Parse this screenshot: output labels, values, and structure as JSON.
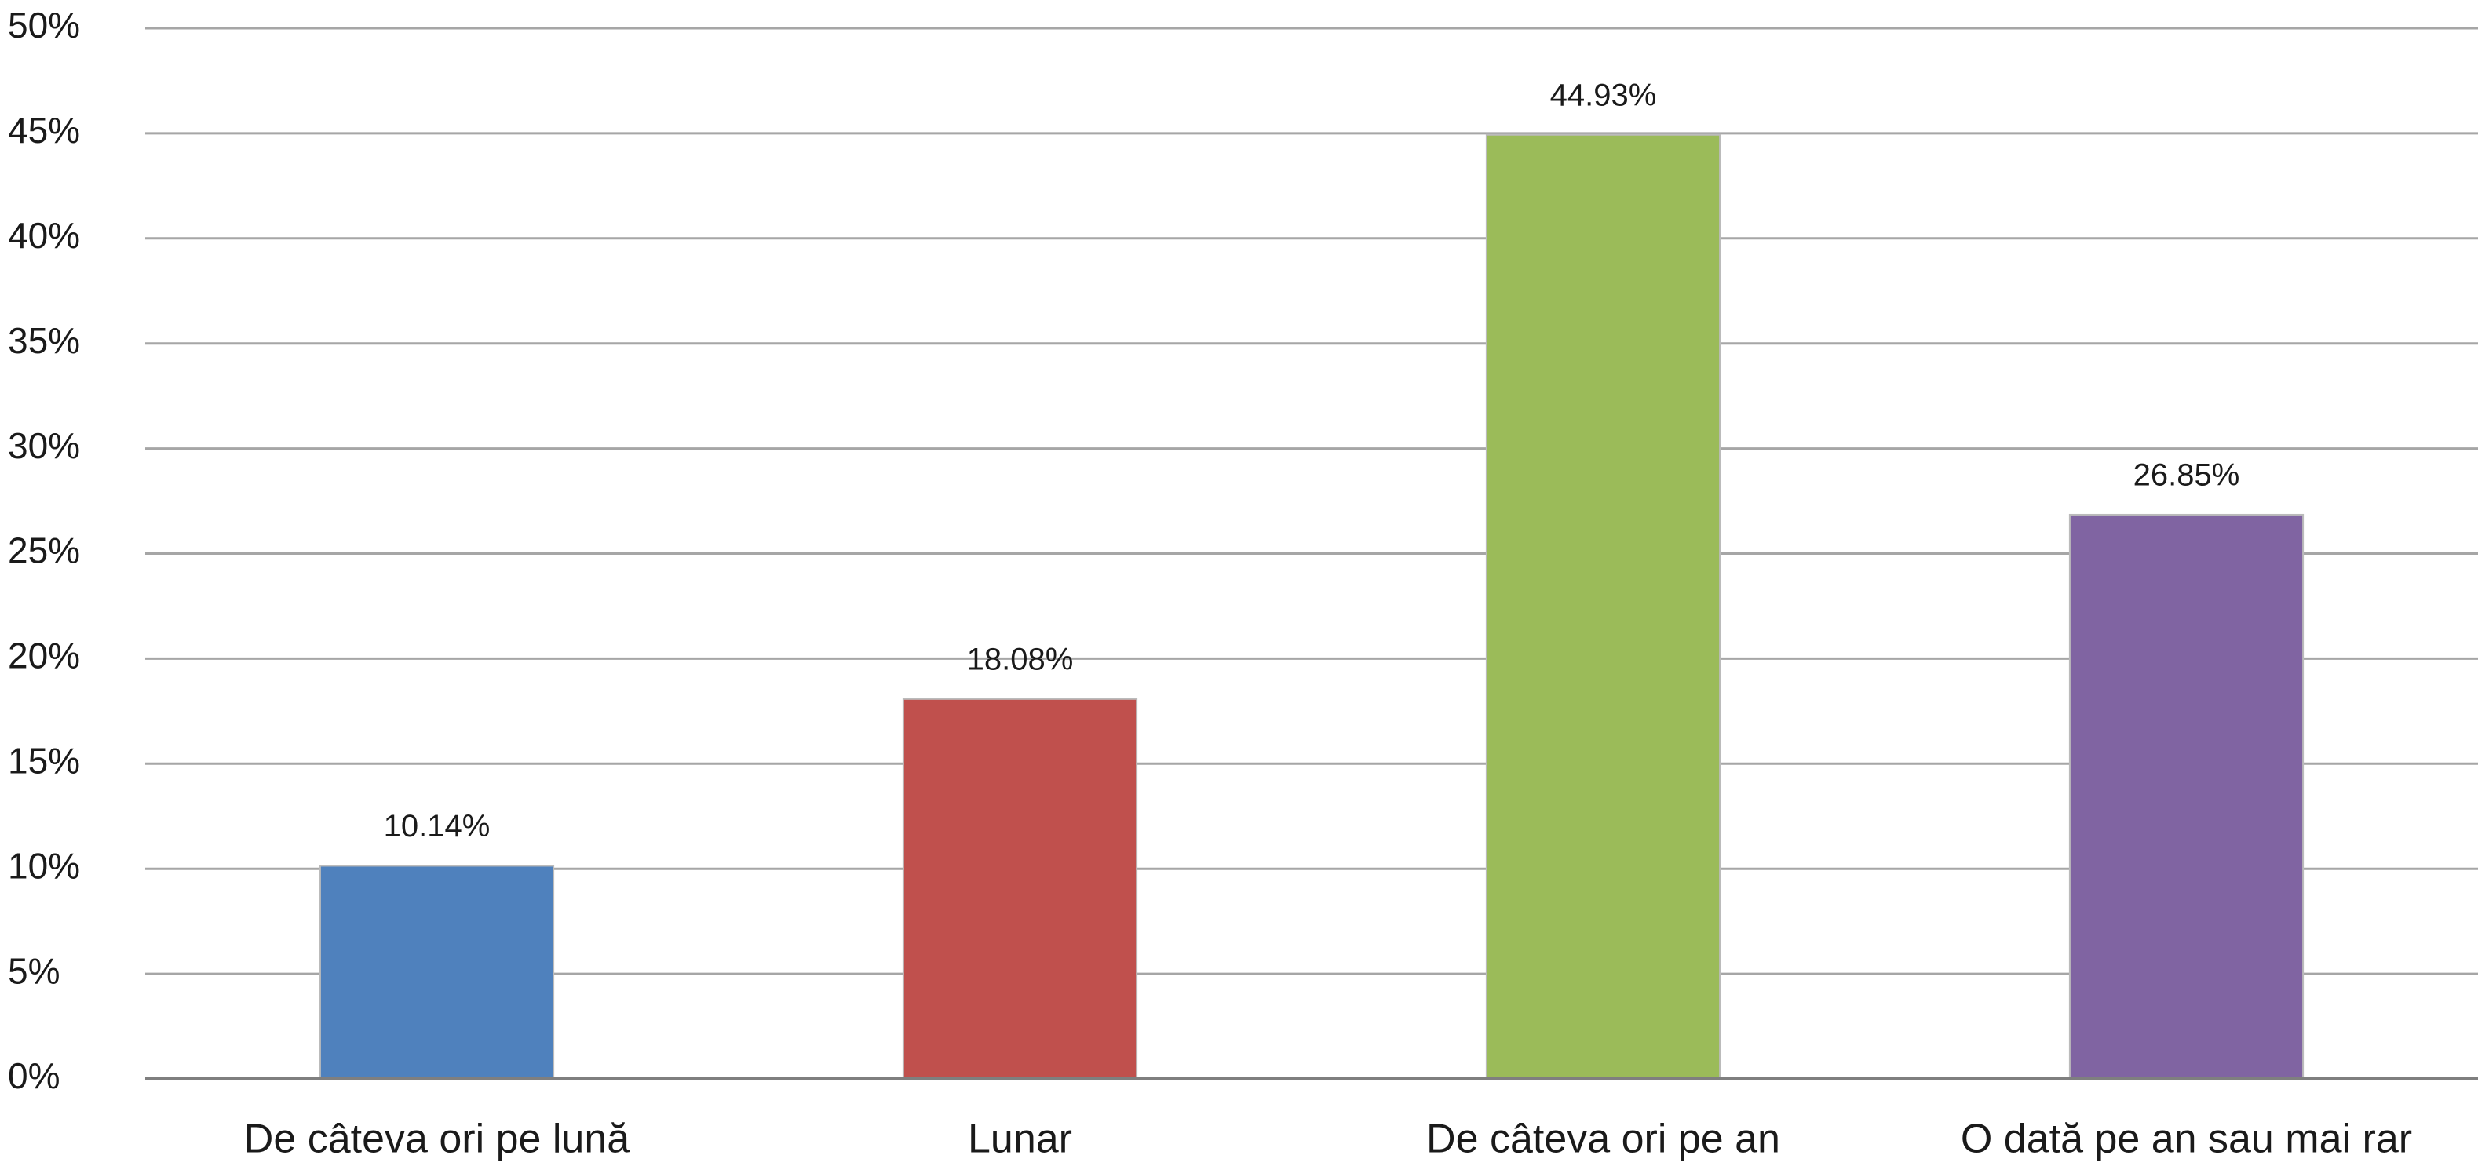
{
  "chart_data": {
    "type": "bar",
    "categories": [
      "De câteva ori pe lună",
      "Lunar",
      "De câteva ori pe an",
      "O dată pe an sau mai rar"
    ],
    "values": [
      10.14,
      18.08,
      44.93,
      26.85
    ],
    "value_labels": [
      "10.14%",
      "18.08%",
      "44.93%",
      "26.85%"
    ],
    "colors": [
      "#4f81bd",
      "#c0504d",
      "#9bbb59",
      "#8064a2"
    ],
    "ylim": [
      0,
      50
    ],
    "yticks": [
      {
        "value": 0,
        "label": "0%"
      },
      {
        "value": 5,
        "label": "5%"
      },
      {
        "value": 10,
        "label": "10%"
      },
      {
        "value": 15,
        "label": "15%"
      },
      {
        "value": 20,
        "label": "20%"
      },
      {
        "value": 25,
        "label": "25%"
      },
      {
        "value": 30,
        "label": "30%"
      },
      {
        "value": 35,
        "label": "35%"
      },
      {
        "value": 40,
        "label": "40%"
      },
      {
        "value": 45,
        "label": "45%"
      },
      {
        "value": 50,
        "label": "50%"
      }
    ],
    "grid": true
  }
}
